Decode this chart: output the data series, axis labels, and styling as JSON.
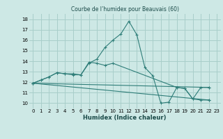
{
  "title": "Courbe de l’humidex pour Beauvais (60)",
  "xlabel": "Humidex (Indice chaleur)",
  "bg_color": "#cde8e5",
  "grid_color": "#a8ceca",
  "line_color": "#2e7d78",
  "xlim": [
    -0.5,
    23.5
  ],
  "ylim": [
    9.5,
    18.5
  ],
  "xticks": [
    0,
    1,
    2,
    3,
    4,
    5,
    6,
    7,
    8,
    9,
    10,
    11,
    12,
    13,
    14,
    15,
    16,
    17,
    18,
    19,
    20,
    21,
    22,
    23
  ],
  "yticks": [
    10,
    11,
    12,
    13,
    14,
    15,
    16,
    17,
    18
  ],
  "curves": [
    {
      "x": [
        0,
        1,
        2,
        3,
        4,
        5,
        6,
        7,
        8,
        9,
        10,
        11,
        12,
        13,
        14,
        15,
        16,
        17,
        18,
        19,
        20,
        21,
        22
      ],
      "y": [
        11.9,
        12.2,
        12.5,
        12.9,
        12.8,
        12.8,
        12.7,
        13.8,
        14.2,
        15.3,
        16.0,
        16.6,
        17.8,
        16.5,
        13.4,
        12.6,
        10.0,
        10.1,
        11.5,
        11.4,
        10.4,
        10.3,
        10.3
      ]
    },
    {
      "x": [
        0,
        1,
        2,
        3,
        4,
        5,
        6,
        7,
        8,
        9,
        10,
        18,
        19,
        20,
        21,
        22
      ],
      "y": [
        11.9,
        12.2,
        12.5,
        12.9,
        12.8,
        12.7,
        12.7,
        13.9,
        13.8,
        13.6,
        13.8,
        11.5,
        11.4,
        10.4,
        11.5,
        11.5
      ]
    },
    {
      "x": [
        0,
        22
      ],
      "y": [
        11.9,
        10.3
      ]
    },
    {
      "x": [
        0,
        22
      ],
      "y": [
        11.9,
        11.5
      ]
    }
  ]
}
